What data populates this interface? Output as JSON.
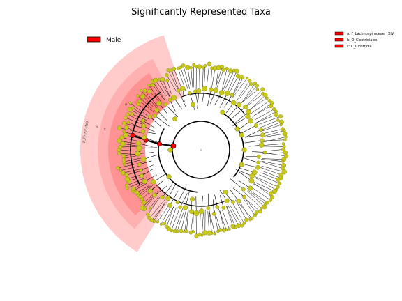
{
  "title": "Significantly Represented Taxa",
  "class_legend": [
    {
      "label": "Male",
      "color": "#ff0000"
    }
  ],
  "biomarker_legend": [
    {
      "label": "a: F_Lachnospiraceae__XIV",
      "color": "#ff0000"
    },
    {
      "label": "b: O_Clostridiales",
      "color": "#ff0000"
    },
    {
      "label": "c: C_Clostridia",
      "color": "#ff0000"
    }
  ],
  "highlight": {
    "phylum_label": "p_Firmicutes",
    "clade_letters": [
      "c",
      "b",
      "a"
    ]
  },
  "colors": {
    "node_default": "#c8c81a",
    "node_stroke": "#7a7a10",
    "node_highlight": "#ff0000",
    "shade_light": "#ffc8c8",
    "shade_mid": "#ff9a9a",
    "shade_dark": "#ff7070",
    "branch": "#000000"
  }
}
